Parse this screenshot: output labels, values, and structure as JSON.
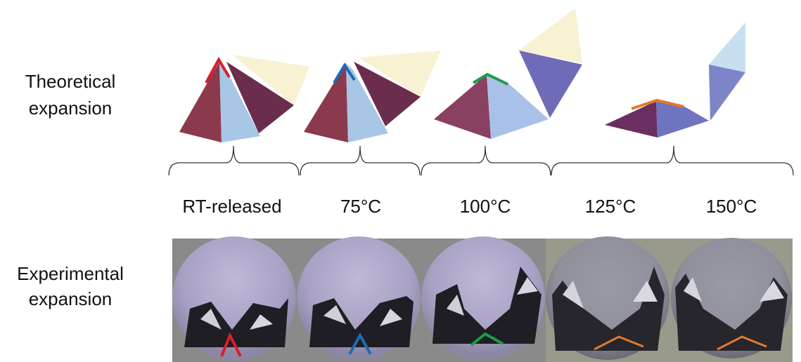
{
  "rows": [
    {
      "label_lines": [
        "Theoretical",
        "expansion"
      ]
    },
    {
      "label_lines": [
        "Experimental",
        "expansion"
      ]
    }
  ],
  "columns": [
    "RT-released",
    "75°C",
    "100°C",
    "125°C",
    "150°C"
  ]
}
